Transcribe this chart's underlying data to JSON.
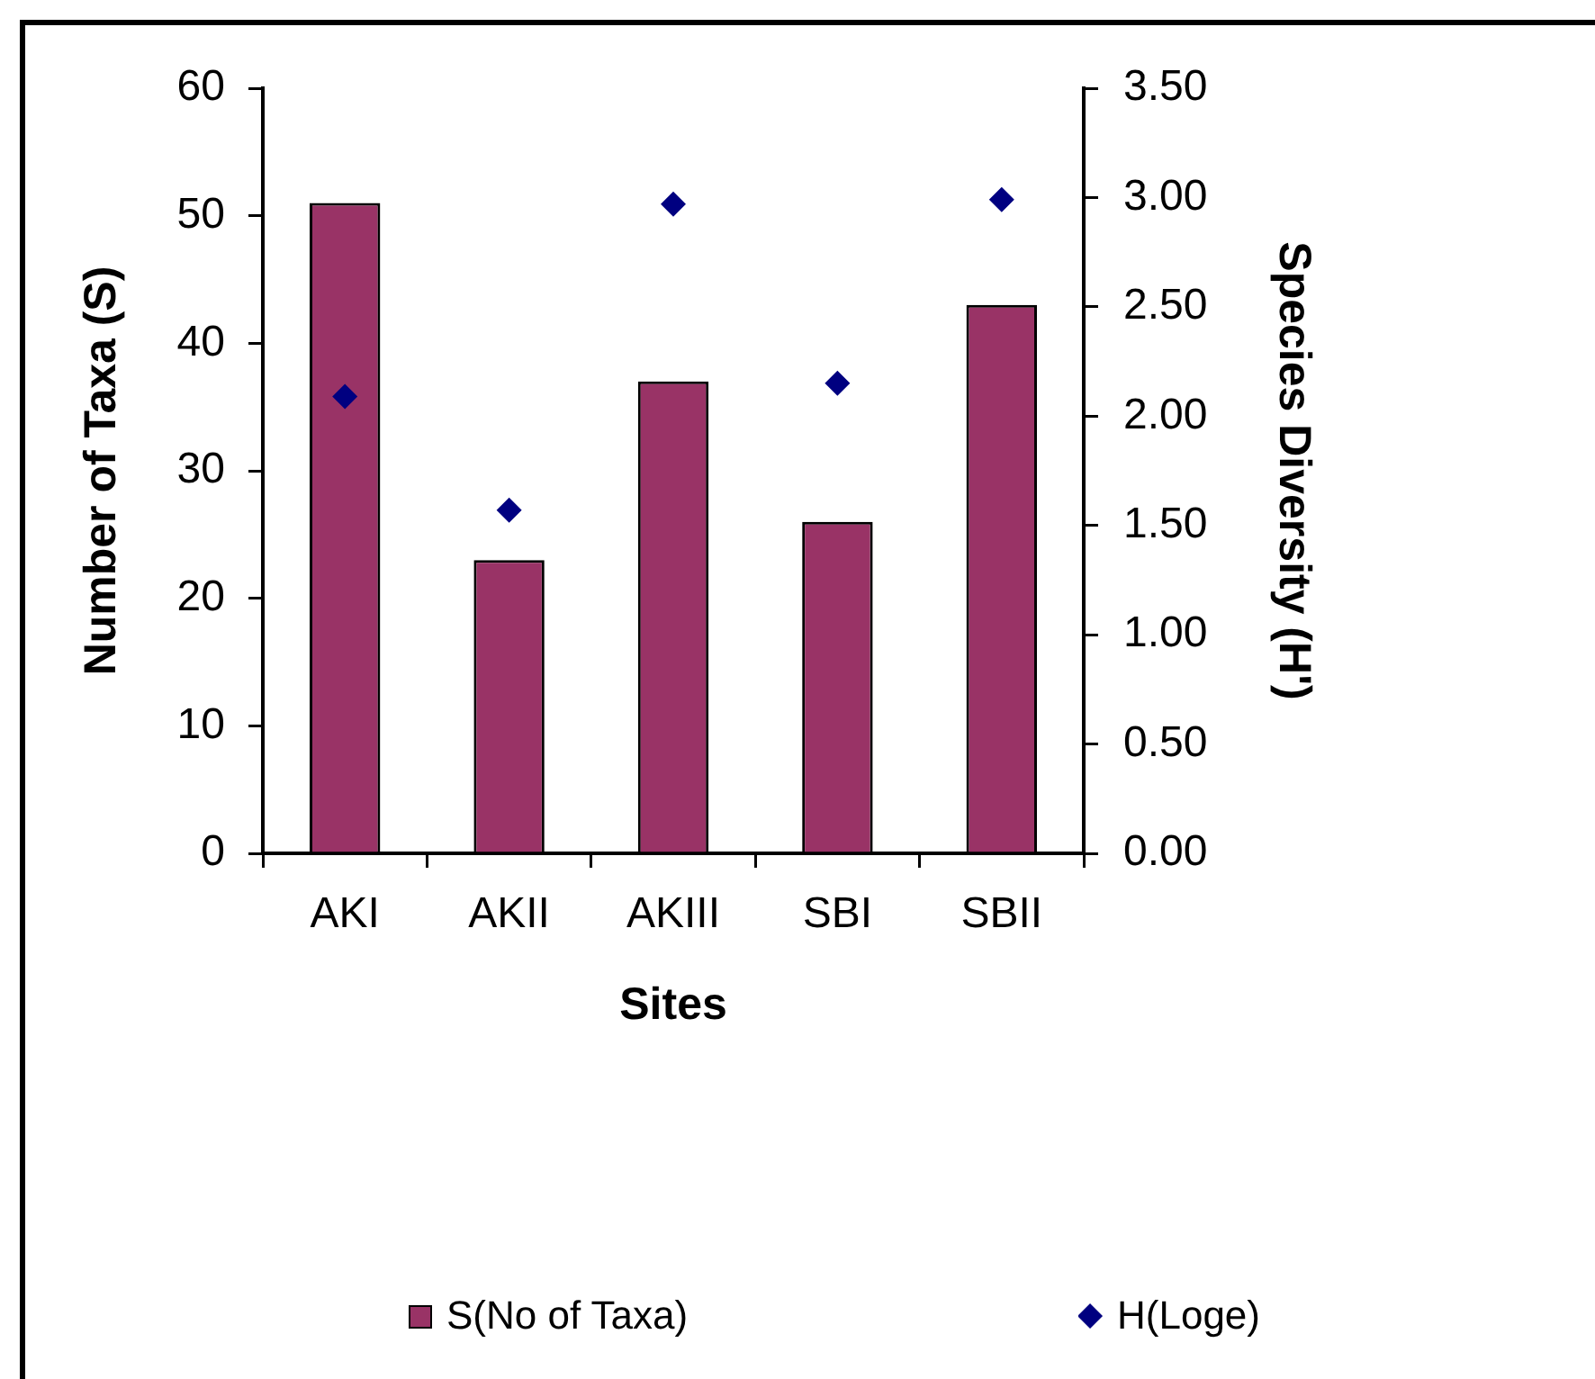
{
  "chart_data": {
    "type": "bar",
    "xlabel": "Sites",
    "ylabel": "Number of Taxa (S)",
    "y2label": "Species Diversity (H')",
    "categories": [
      "AKI",
      "AKII",
      "AKIII",
      "SBI",
      "SBII"
    ],
    "series": [
      {
        "name": "S(No of Taxa)",
        "color": "#993366",
        "values": [
          51,
          23,
          37,
          26,
          43
        ]
      },
      {
        "name": "H(Loge)",
        "type": "scatter",
        "color": "#000080",
        "axis": "y2",
        "marker": "diamond",
        "values": [
          2.09,
          1.57,
          2.97,
          2.15,
          2.99
        ]
      }
    ],
    "ylim": [
      0,
      60
    ],
    "yticks": [
      0,
      10,
      20,
      30,
      40,
      50,
      60
    ],
    "y2lim": [
      0,
      3.5
    ],
    "y2ticks": [
      {
        "value": 0,
        "label": "0.00"
      },
      {
        "value": 0.5,
        "label": "0.50"
      },
      {
        "value": 1,
        "label": "1.00"
      },
      {
        "value": 1.5,
        "label": "1.50"
      },
      {
        "value": 2,
        "label": "2.00"
      },
      {
        "value": 2.5,
        "label": "2.50"
      },
      {
        "value": 3,
        "label": "3.00"
      },
      {
        "value": 3.5,
        "label": "3.50"
      }
    ],
    "grid": false,
    "legend": "bottom"
  }
}
